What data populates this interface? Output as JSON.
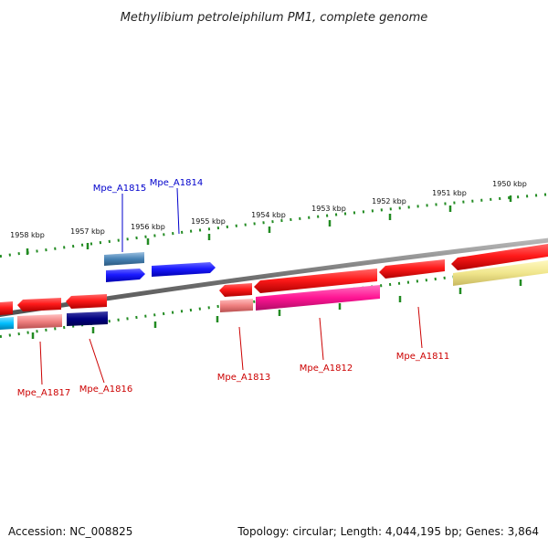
{
  "title": "Methylibium petroleiphilum PM1, complete genome",
  "footer": {
    "accession": "Accession: NC_008825",
    "summary": "Topology: circular; Length: 4,044,195 bp; Genes: 3,864"
  },
  "scale": {
    "unit": "kbp",
    "ticks": [
      "1958 kbp",
      "1957 kbp",
      "1956 kbp",
      "1955 kbp",
      "1954 kbp",
      "1953 kbp",
      "1952 kbp",
      "1951 kbp",
      "1950 kbp"
    ]
  },
  "colors": {
    "forward_label": "#0000cc",
    "reverse_label": "#cc0000",
    "backbone": "#808080",
    "scale_marks": "#228b22"
  },
  "genes": [
    {
      "name": "Mpe_A1815",
      "strand": "forward",
      "color": "#1010ee",
      "cog_color": "#4682b4"
    },
    {
      "name": "Mpe_A1814",
      "strand": "forward",
      "color": "#1010ee",
      "cog_color": ""
    },
    {
      "name": "Mpe_A1817",
      "strand": "reverse",
      "color": "#ee1010",
      "cog_color": "#f08080"
    },
    {
      "name": "Mpe_A1816",
      "strand": "reverse",
      "color": "#ee1010",
      "cog_color": "#000080"
    },
    {
      "name": "Mpe_A1813",
      "strand": "reverse",
      "color": "#ee1010",
      "cog_color": "#f08080"
    },
    {
      "name": "Mpe_A1812",
      "strand": "reverse",
      "color": "#ee1010",
      "cog_color": "#ff1493"
    },
    {
      "name": "Mpe_A1811",
      "strand": "reverse",
      "color": "#ee1010",
      "cog_color": "#f0e68c"
    }
  ]
}
